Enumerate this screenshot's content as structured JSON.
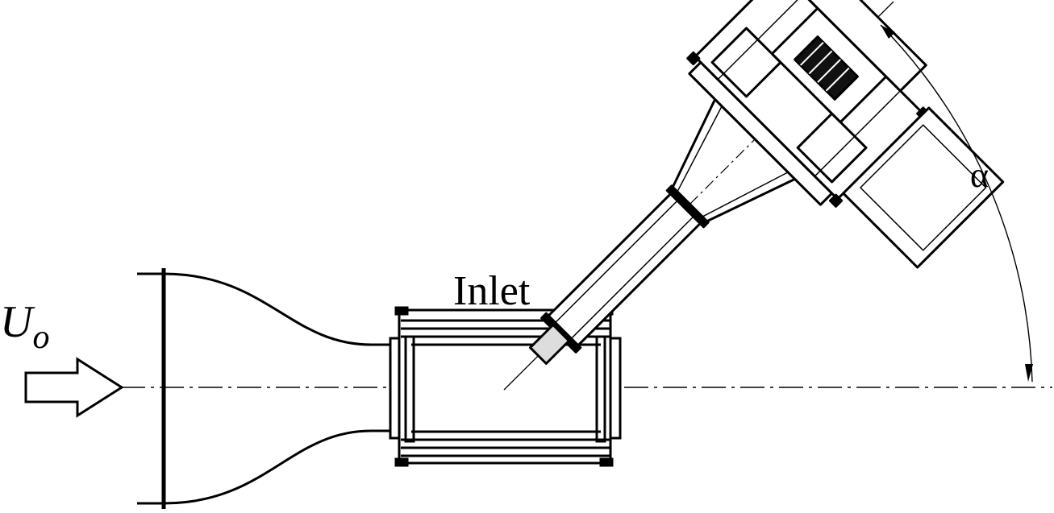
{
  "labels": {
    "velocity_symbol": "U",
    "velocity_subscript": "o",
    "inlet": "Inlet",
    "angle": "α"
  },
  "colors": {
    "ink": "#000000",
    "paper": "#ffffff"
  },
  "components": [
    "flow-arrow",
    "contraction-nozzle",
    "test-section",
    "angled-inlet-duct",
    "fan-motor-housing",
    "centerline",
    "angle-arc"
  ]
}
